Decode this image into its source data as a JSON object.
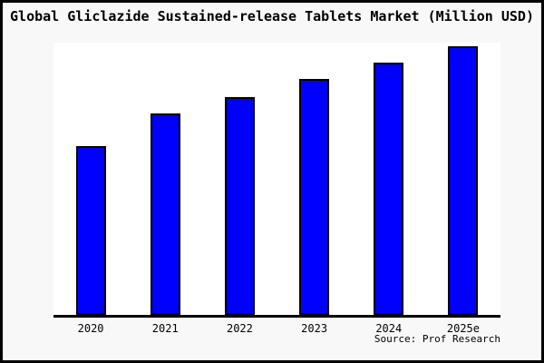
{
  "title": "Global Gliclazide Sustained-release Tablets Market (Million USD)",
  "footer": {
    "source": "Source: Prof Research"
  },
  "colors": {
    "page_bg": "#f8f8f8",
    "plot_bg": "#ffffff",
    "frame_border": "#000000",
    "bar_fill": "#0000fe",
    "bar_border": "#000000",
    "text": "#000000"
  },
  "chart_data": {
    "type": "bar",
    "title": "Global Gliclazide Sustained-release Tablets Market (Million USD)",
    "categories": [
      "2020",
      "2021",
      "2022",
      "2023",
      "2024",
      "2025e"
    ],
    "values": [
      61.9,
      74.0,
      80.1,
      86.8,
      92.7,
      98.8
    ],
    "ylim": [
      0,
      100
    ],
    "xlabel": "",
    "ylabel": "",
    "grid": false,
    "legend": "none",
    "annotations": [
      "Source: Prof Research"
    ]
  }
}
